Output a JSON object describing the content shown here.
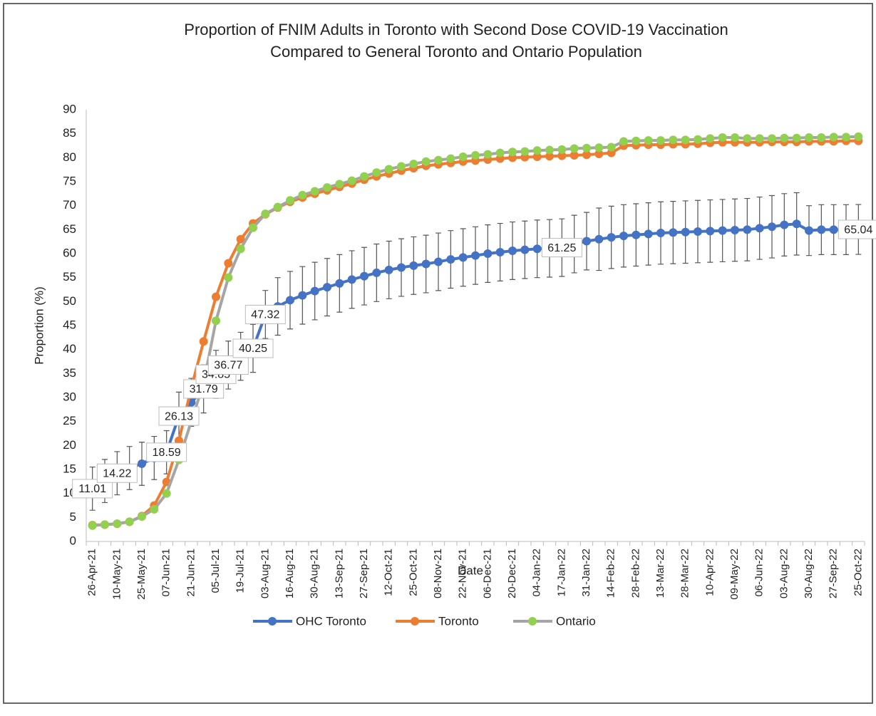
{
  "chart_data": {
    "type": "line",
    "title": [
      "Proportion of FNIM Adults in Toronto with Second Dose COVID-19 Vaccination",
      "Compared to General Toronto and Ontario Population"
    ],
    "x_label": "Date",
    "y_label": "Proportion (%)",
    "categories": [
      "26-Apr-21",
      null,
      "10-May-21",
      null,
      "25-May-21",
      null,
      "07-Jun-21",
      null,
      "21-Jun-21",
      null,
      "05-Jul-21",
      null,
      "19-Jul-21",
      null,
      "03-Aug-21",
      null,
      "16-Aug-21",
      null,
      "30-Aug-21",
      null,
      "13-Sep-21",
      null,
      "27-Sep-21",
      null,
      "12-Oct-21",
      null,
      "25-Oct-21",
      null,
      "08-Nov-21",
      null,
      "22-Nov-21",
      null,
      "06-Dec-21",
      null,
      "20-Dec-21",
      null,
      "04-Jan-22",
      null,
      "17-Jan-22",
      null,
      "31-Jan-22",
      null,
      "14-Feb-22",
      null,
      "28-Feb-22",
      null,
      "13-Mar-22",
      null,
      "28-Mar-22",
      null,
      "10-Apr-22",
      null,
      "09-May-22",
      null,
      "06-Jun-22",
      null,
      "03-Aug-22",
      null,
      "30-Aug-22",
      null,
      "27-Sep-22",
      null,
      "25-Oct-22"
    ],
    "series": [
      {
        "name": "OHC Toronto",
        "color": "#4472c4",
        "marker_color": "#4472c4",
        "values": [
          11.01,
          12.6,
          14.22,
          15.3,
          16.2,
          17.4,
          18.59,
          26.13,
          29.0,
          31.79,
          34.85,
          36.77,
          38.6,
          40.25,
          47.32,
          49.0,
          50.3,
          51.3,
          52.2,
          53.0,
          53.8,
          54.6,
          55.3,
          56.0,
          56.6,
          57.1,
          57.5,
          57.84,
          58.3,
          58.8,
          59.2,
          59.6,
          60.0,
          60.3,
          60.6,
          60.8,
          61.0,
          61.1,
          61.25,
          62.0,
          62.6,
          63.0,
          63.4,
          63.7,
          63.9,
          64.1,
          64.3,
          64.4,
          64.5,
          64.6,
          64.7,
          64.8,
          64.9,
          65.0,
          65.3,
          65.6,
          66.0,
          66.2,
          64.8,
          65.0,
          65.0,
          65.0,
          65.04
        ],
        "errors": [
          4.5,
          4.5,
          4.5,
          4.5,
          4.5,
          4.5,
          4.5,
          5,
          5,
          5,
          5,
          5,
          5,
          5,
          5,
          6,
          6,
          6,
          6,
          6,
          6,
          6,
          6,
          6,
          6,
          6,
          6,
          6,
          6,
          6,
          6,
          6,
          6,
          6,
          6,
          6,
          6,
          6,
          6,
          6,
          6,
          6.5,
          6.5,
          6.5,
          6.5,
          6.5,
          6.5,
          6.5,
          6.5,
          6.5,
          6.5,
          6.5,
          6.5,
          6.5,
          6.5,
          6.5,
          6.5,
          6.5,
          5.2,
          5.2,
          5.2,
          5.2,
          5.2
        ],
        "value_labels": [
          "11.01",
          null,
          "14.22",
          null,
          null,
          null,
          "18.59",
          "26.13",
          null,
          "31.79",
          "34.85",
          "36.77",
          null,
          "40.25",
          "47.32",
          null,
          null,
          null,
          null,
          null,
          null,
          null,
          null,
          null,
          null,
          null,
          null,
          null,
          null,
          null,
          null,
          null,
          null,
          null,
          null,
          null,
          null,
          null,
          "61.25",
          null,
          null,
          null,
          null,
          null,
          null,
          null,
          null,
          null,
          null,
          null,
          null,
          null,
          null,
          null,
          null,
          null,
          null,
          null,
          null,
          null,
          null,
          null,
          "65.04"
        ]
      },
      {
        "name": "Toronto",
        "color": "#ed7d31",
        "marker_color": "#ed7d31",
        "values": [
          3.4,
          3.5,
          3.7,
          4.1,
          5.3,
          7.5,
          12.4,
          21,
          32,
          41.7,
          51,
          58,
          63,
          66.3,
          68.2,
          69.6,
          70.8,
          71.7,
          72.5,
          73.2,
          73.9,
          74.6,
          75.4,
          76.1,
          76.7,
          77.3,
          77.8,
          78.3,
          78.6,
          78.9,
          79.2,
          79.4,
          79.6,
          79.8,
          80,
          80.1,
          80.2,
          80.3,
          80.4,
          80.5,
          80.6,
          80.8,
          81,
          82.5,
          82.6,
          82.7,
          82.7,
          82.8,
          82.8,
          82.9,
          83.1,
          83.2,
          83.2,
          83.2,
          83.2,
          83.3,
          83.3,
          83.3,
          83.4,
          83.4,
          83.4,
          83.5,
          83.5
        ]
      },
      {
        "name": "Ontario",
        "color": "#a5a5a5",
        "marker_color": "#92d050",
        "values": [
          3.3,
          3.5,
          3.7,
          4.1,
          5.2,
          6.7,
          10,
          17,
          25,
          33,
          46,
          55,
          61,
          65.4,
          68.3,
          69.7,
          71.1,
          72.2,
          73,
          73.8,
          74.5,
          75.2,
          76.1,
          76.9,
          77.6,
          78.2,
          78.7,
          79.2,
          79.5,
          79.8,
          80.2,
          80.5,
          80.7,
          81,
          81.2,
          81.3,
          81.5,
          81.6,
          81.7,
          81.9,
          82,
          82.1,
          82.2,
          83.4,
          83.5,
          83.6,
          83.6,
          83.7,
          83.7,
          83.8,
          84,
          84.2,
          84.2,
          84,
          84,
          84,
          84.1,
          84.1,
          84.2,
          84.2,
          84.3,
          84.3,
          84.4
        ]
      }
    ],
    "ylim": [
      0,
      90
    ],
    "yticks": [
      0,
      5,
      10,
      15,
      20,
      25,
      30,
      35,
      40,
      45,
      50,
      55,
      60,
      65,
      70,
      75,
      80,
      85,
      90
    ],
    "grid": false,
    "legend": "bottom"
  }
}
